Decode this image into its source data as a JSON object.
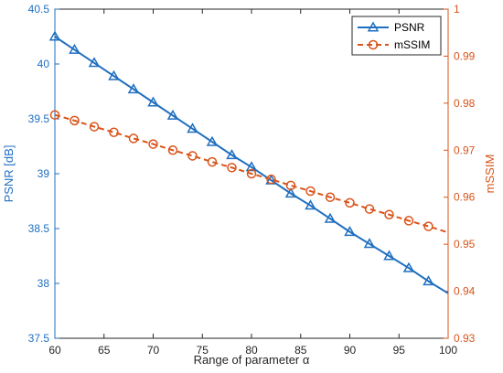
{
  "chart_data": {
    "type": "line",
    "title": "",
    "xlabel": "Range of parameter α",
    "ylabel_left": "PSNR [dB]",
    "ylabel_right": "mSSIM",
    "xlim": [
      60,
      100
    ],
    "ylim_left": [
      37.5,
      40.5
    ],
    "ylim_right": [
      0.93,
      1.0
    ],
    "x_ticks": [
      60,
      65,
      70,
      75,
      80,
      85,
      90,
      95,
      100
    ],
    "y_ticks_left": [
      37.5,
      38,
      38.5,
      39,
      39.5,
      40,
      40.5
    ],
    "y_ticks_right": [
      0.93,
      0.94,
      0.95,
      0.96,
      0.97,
      0.98,
      0.99,
      1
    ],
    "grid": false,
    "legend_position": "top-right",
    "series": [
      {
        "name": "PSNR",
        "axis": "left",
        "color": "#1f6fc0",
        "marker": "triangle",
        "line_style": "solid",
        "x": [
          60,
          62,
          64,
          66,
          68,
          70,
          72,
          74,
          76,
          78,
          80,
          82,
          84,
          86,
          88,
          90,
          92,
          94,
          96,
          98,
          100
        ],
        "values": [
          40.25,
          40.13,
          40.01,
          39.89,
          39.77,
          39.65,
          39.53,
          39.41,
          39.29,
          39.17,
          39.06,
          38.94,
          38.82,
          38.71,
          38.59,
          38.47,
          38.36,
          38.25,
          38.14,
          38.02,
          37.91
        ]
      },
      {
        "name": "mSSIM",
        "axis": "right",
        "color": "#d9541a",
        "marker": "circle",
        "line_style": "dashed",
        "x": [
          60,
          62,
          64,
          66,
          68,
          70,
          72,
          74,
          76,
          78,
          80,
          82,
          84,
          86,
          88,
          90,
          92,
          94,
          96,
          98,
          100
        ],
        "values": [
          0.9775,
          0.9763,
          0.975,
          0.9738,
          0.9725,
          0.9713,
          0.97,
          0.9688,
          0.9675,
          0.9663,
          0.965,
          0.9638,
          0.9625,
          0.9613,
          0.96,
          0.9588,
          0.9575,
          0.9563,
          0.955,
          0.9538,
          0.9525
        ]
      }
    ]
  }
}
